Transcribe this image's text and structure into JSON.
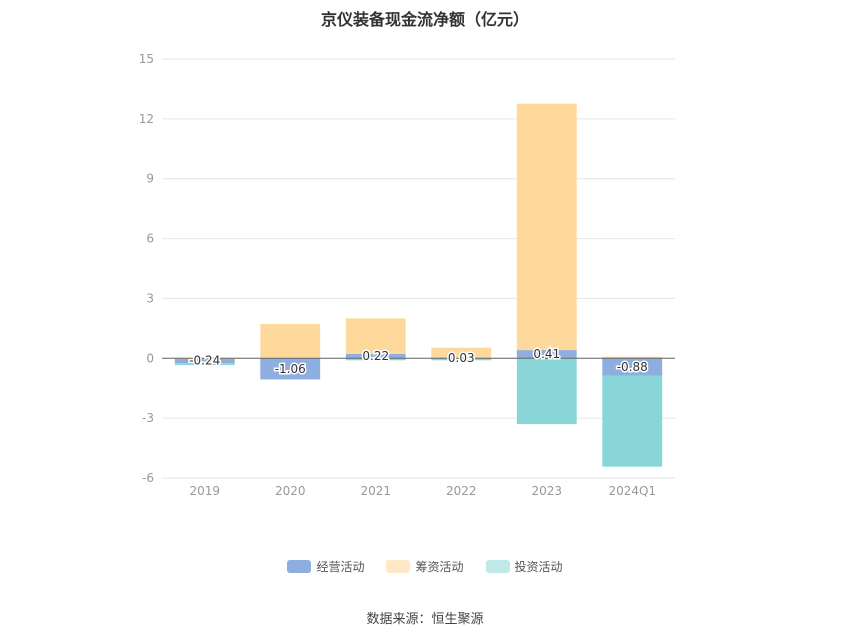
{
  "chart_data": {
    "type": "bar",
    "stacked": true,
    "title": "京仪装备现金流净额（亿元）",
    "xlabel": "",
    "ylabel": "",
    "categories": [
      "2019",
      "2020",
      "2021",
      "2022",
      "2023",
      "2024Q1"
    ],
    "ylim": [
      -6,
      15
    ],
    "yticks": [
      -6,
      -3,
      0,
      3,
      6,
      9,
      12,
      15
    ],
    "grid": true,
    "legend_position": "bottom",
    "series": [
      {
        "name": "经营活动",
        "color": "#8eaee0",
        "values": [
          -0.24,
          -1.06,
          0.22,
          0.03,
          0.41,
          -0.88
        ],
        "labels": [
          "-0.24",
          "-1.06",
          "0.22",
          "0.03",
          "0.41",
          "-0.88"
        ]
      },
      {
        "name": "筹资活动",
        "color": "#ffd89c",
        "values": [
          0.02,
          1.72,
          1.78,
          0.5,
          12.35,
          0.08
        ]
      },
      {
        "name": "投资活动",
        "color": "#88d6d8",
        "values": [
          -0.1,
          0.0,
          -0.1,
          -0.1,
          -3.3,
          -4.55
        ]
      }
    ]
  },
  "legend": {
    "operating_label": "经营活动",
    "financing_label": "筹资活动",
    "investing_label": "投资活动"
  },
  "source": "数据来源：恒生聚源"
}
